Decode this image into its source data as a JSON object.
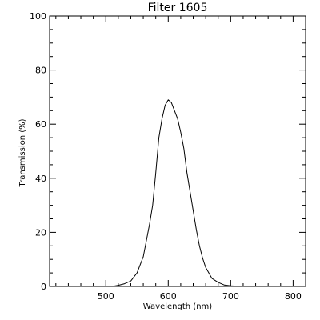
{
  "chart_data": {
    "type": "line",
    "title": "Filter 1605",
    "xlabel": "Wavelength (nm)",
    "ylabel": "Transmission (%)",
    "xlim": [
      410,
      820
    ],
    "ylim": [
      0,
      100
    ],
    "x_ticks": [
      500,
      600,
      700,
      800
    ],
    "y_ticks": [
      0,
      20,
      40,
      60,
      80,
      100
    ],
    "x_tick_labels": [
      "500",
      "600",
      "700",
      "800"
    ],
    "y_tick_labels": [
      "0",
      "20",
      "40",
      "60",
      "80",
      "100"
    ],
    "grid": false,
    "colors": {
      "line": "#000000",
      "axis": "#000000",
      "background": "#ffffff"
    },
    "series": [
      {
        "x": [
          500,
          510,
          520,
          530,
          540,
          550,
          560,
          570,
          575,
          580,
          585,
          590,
          595,
          600,
          605,
          610,
          615,
          620,
          625,
          630,
          635,
          640,
          645,
          650,
          655,
          660,
          670,
          680,
          690,
          700,
          710,
          720,
          730,
          740,
          750
        ],
        "y": [
          0,
          0,
          0.4,
          1,
          2,
          5,
          11,
          23,
          30,
          42,
          55,
          62,
          67,
          69,
          68,
          65,
          62,
          57,
          51,
          42,
          35,
          28,
          21,
          15,
          10.5,
          7,
          3,
          1.5,
          0.5,
          0.2,
          0.1,
          0,
          0,
          0,
          0
        ]
      }
    ]
  }
}
